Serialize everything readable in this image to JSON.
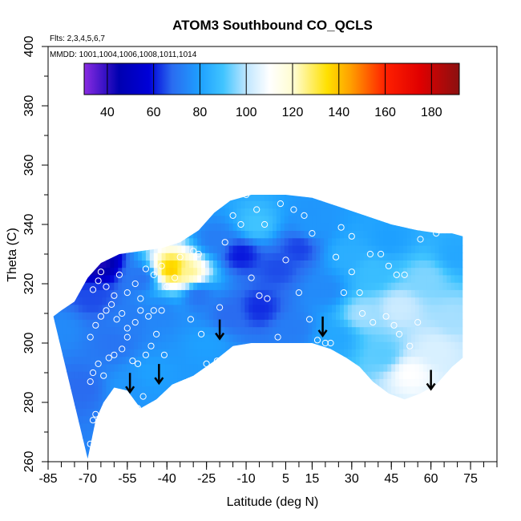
{
  "chart_data": {
    "type": "heatmap",
    "title": "ATOM3 Southbound CO_QCLS",
    "flights_note": "Flts: 2,3,4,5,6,7",
    "dates_note": "MMDD: 1001,1004,1006,1008,1011,1014",
    "xlabel": "Latitude (deg N)",
    "ylabel": "Theta (C)",
    "xlim": [
      -85,
      85
    ],
    "ylim": [
      260,
      400
    ],
    "x_ticks": [
      -85,
      -70,
      -55,
      -40,
      -25,
      -10,
      5,
      15,
      30,
      45,
      60,
      75
    ],
    "x_tick_labels": [
      "-85",
      "-70",
      "-55",
      "-40",
      "-25",
      "-10",
      "5",
      "15",
      "30",
      "45",
      "60",
      "75"
    ],
    "x_minor_step": 5,
    "y_ticks": [
      260,
      280,
      300,
      320,
      340,
      360,
      380,
      400
    ],
    "y_tick_labels": [
      "260",
      "280",
      "300",
      "320",
      "340",
      "360",
      "380",
      "400"
    ],
    "y_minor_step": 10,
    "colorbar": {
      "min": 30,
      "max": 192,
      "ticks": [
        40,
        60,
        80,
        100,
        120,
        140,
        160,
        180
      ],
      "tick_labels": [
        "40",
        "60",
        "80",
        "100",
        "120",
        "140",
        "160",
        "180"
      ],
      "stops": [
        {
          "v": 30,
          "color": "#8a2be2"
        },
        {
          "v": 45,
          "color": "#0000b0"
        },
        {
          "v": 58,
          "color": "#0000d8"
        },
        {
          "v": 68,
          "color": "#2a6cf0"
        },
        {
          "v": 80,
          "color": "#1ea0ff"
        },
        {
          "v": 90,
          "color": "#40c4ff"
        },
        {
          "v": 100,
          "color": "#bfe6ff"
        },
        {
          "v": 110,
          "color": "#ffffff"
        },
        {
          "v": 121,
          "color": "#fffccc"
        },
        {
          "v": 135,
          "color": "#ffe000"
        },
        {
          "v": 145,
          "color": "#ffa000"
        },
        {
          "v": 160,
          "color": "#ff2000"
        },
        {
          "v": 175,
          "color": "#e00000"
        },
        {
          "v": 192,
          "color": "#8b1010"
        }
      ]
    },
    "field": {
      "lower_boundary": [
        [
          -70,
          261
        ],
        [
          -67,
          274
        ],
        [
          -64,
          280
        ],
        [
          -60,
          285
        ],
        [
          -55,
          284
        ],
        [
          -50,
          278
        ],
        [
          -44,
          281
        ],
        [
          -38,
          286
        ],
        [
          -30,
          289
        ],
        [
          -22,
          294
        ],
        [
          -15,
          299
        ],
        [
          -8,
          300
        ],
        [
          5,
          300
        ],
        [
          15,
          300
        ],
        [
          22,
          298
        ],
        [
          28,
          295
        ],
        [
          33,
          292
        ],
        [
          38,
          287
        ],
        [
          44,
          283
        ],
        [
          50,
          281
        ],
        [
          56,
          283
        ],
        [
          62,
          286
        ],
        [
          68,
          292
        ],
        [
          72,
          295
        ]
      ],
      "upper_boundary": [
        [
          -83,
          309
        ],
        [
          -80,
          311
        ],
        [
          -75,
          314
        ],
        [
          -70,
          322
        ],
        [
          -65,
          327
        ],
        [
          -58,
          330
        ],
        [
          -50,
          331
        ],
        [
          -42,
          332
        ],
        [
          -35,
          334
        ],
        [
          -28,
          338
        ],
        [
          -22,
          344
        ],
        [
          -16,
          348
        ],
        [
          -8,
          350
        ],
        [
          5,
          350
        ],
        [
          15,
          349
        ],
        [
          25,
          346
        ],
        [
          35,
          343
        ],
        [
          45,
          340
        ],
        [
          55,
          338
        ],
        [
          63,
          337
        ],
        [
          68,
          337
        ],
        [
          72,
          336
        ]
      ],
      "anchors": [
        {
          "lat": -80,
          "theta": 305,
          "co": 75
        },
        {
          "lat": -72,
          "theta": 285,
          "co": 68
        },
        {
          "lat": -68,
          "theta": 315,
          "co": 65
        },
        {
          "lat": -66,
          "theta": 327,
          "co": 42
        },
        {
          "lat": -60,
          "theta": 300,
          "co": 70
        },
        {
          "lat": -55,
          "theta": 285,
          "co": 78
        },
        {
          "lat": -50,
          "theta": 322,
          "co": 70
        },
        {
          "lat": -46,
          "theta": 290,
          "co": 80
        },
        {
          "lat": -42,
          "theta": 310,
          "co": 74
        },
        {
          "lat": -38,
          "theta": 325,
          "co": 138
        },
        {
          "lat": -32,
          "theta": 324,
          "co": 125
        },
        {
          "lat": -28,
          "theta": 316,
          "co": 70
        },
        {
          "lat": -25,
          "theta": 300,
          "co": 80
        },
        {
          "lat": -22,
          "theta": 335,
          "co": 72
        },
        {
          "lat": -16,
          "theta": 310,
          "co": 68
        },
        {
          "lat": -12,
          "theta": 330,
          "co": 60
        },
        {
          "lat": -6,
          "theta": 340,
          "co": 90
        },
        {
          "lat": -5,
          "theta": 312,
          "co": 62
        },
        {
          "lat": 2,
          "theta": 325,
          "co": 65
        },
        {
          "lat": 8,
          "theta": 305,
          "co": 72
        },
        {
          "lat": 15,
          "theta": 340,
          "co": 78
        },
        {
          "lat": 20,
          "theta": 318,
          "co": 75
        },
        {
          "lat": 24,
          "theta": 302,
          "co": 82
        },
        {
          "lat": 28,
          "theta": 330,
          "co": 84
        },
        {
          "lat": 34,
          "theta": 310,
          "co": 98
        },
        {
          "lat": 38,
          "theta": 324,
          "co": 88
        },
        {
          "lat": 42,
          "theta": 296,
          "co": 92
        },
        {
          "lat": 44,
          "theta": 335,
          "co": 80
        },
        {
          "lat": 48,
          "theta": 312,
          "co": 102
        },
        {
          "lat": 52,
          "theta": 290,
          "co": 110
        },
        {
          "lat": 58,
          "theta": 322,
          "co": 95
        },
        {
          "lat": 62,
          "theta": 298,
          "co": 104
        },
        {
          "lat": 68,
          "theta": 308,
          "co": 98
        },
        {
          "lat": 70,
          "theta": 330,
          "co": 82
        },
        {
          "lat": -55,
          "theta": 308,
          "co": 72
        },
        {
          "lat": 10,
          "theta": 332,
          "co": 64
        }
      ]
    },
    "sample_points": [
      [
        -69,
        266
      ],
      [
        -68,
        274
      ],
      [
        -67,
        276
      ],
      [
        -65,
        275
      ],
      [
        -62,
        275
      ],
      [
        -60,
        282
      ],
      [
        -58,
        279
      ],
      [
        -56,
        281
      ],
      [
        -54,
        276
      ],
      [
        -51,
        278
      ],
      [
        -49,
        282
      ],
      [
        -69,
        287
      ],
      [
        -68,
        290
      ],
      [
        -66,
        293
      ],
      [
        -64,
        289
      ],
      [
        -62,
        295
      ],
      [
        -60,
        296
      ],
      [
        -57,
        298
      ],
      [
        -55,
        302
      ],
      [
        -53,
        294
      ],
      [
        -51,
        293
      ],
      [
        -48,
        296
      ],
      [
        -46,
        299
      ],
      [
        -44,
        303
      ],
      [
        -41,
        296
      ],
      [
        -69,
        302
      ],
      [
        -67,
        306
      ],
      [
        -65,
        309
      ],
      [
        -63,
        311
      ],
      [
        -61,
        313
      ],
      [
        -59,
        308
      ],
      [
        -57,
        310
      ],
      [
        -55,
        305
      ],
      [
        -52,
        307
      ],
      [
        -50,
        311
      ],
      [
        -47,
        309
      ],
      [
        -45,
        311
      ],
      [
        -42,
        311
      ],
      [
        -68,
        318
      ],
      [
        -66,
        321
      ],
      [
        -65,
        324
      ],
      [
        -63,
        319
      ],
      [
        -60,
        316
      ],
      [
        -58,
        323
      ],
      [
        -55,
        317
      ],
      [
        -52,
        320
      ],
      [
        -50,
        315
      ],
      [
        -48,
        325
      ],
      [
        -45,
        323
      ],
      [
        -42,
        326
      ],
      [
        -40,
        319
      ],
      [
        -37,
        322
      ],
      [
        -71,
        327
      ],
      [
        -67,
        329
      ],
      [
        -35,
        329
      ],
      [
        -30,
        331
      ],
      [
        -28,
        330
      ],
      [
        -31,
        308
      ],
      [
        -27,
        303
      ],
      [
        -25,
        293
      ],
      [
        -21,
        294
      ],
      [
        -20,
        312
      ],
      [
        -18,
        334
      ],
      [
        -15,
        343
      ],
      [
        -10,
        350
      ],
      [
        -6,
        345
      ],
      [
        -3,
        340
      ],
      [
        -12,
        340
      ],
      [
        -8,
        322
      ],
      [
        -5,
        316
      ],
      [
        -2,
        315
      ],
      [
        2,
        302
      ],
      [
        3,
        347
      ],
      [
        8,
        345
      ],
      [
        12,
        343
      ],
      [
        15,
        337
      ],
      [
        5,
        328
      ],
      [
        10,
        317
      ],
      [
        14,
        308
      ],
      [
        17,
        301
      ],
      [
        20,
        300
      ],
      [
        22,
        300
      ],
      [
        24,
        329
      ],
      [
        27,
        317
      ],
      [
        30,
        324
      ],
      [
        33,
        317
      ],
      [
        34,
        310
      ],
      [
        38,
        307
      ],
      [
        37,
        330
      ],
      [
        41,
        330
      ],
      [
        44,
        326
      ],
      [
        47,
        323
      ],
      [
        46,
        306
      ],
      [
        43,
        309
      ],
      [
        26,
        339
      ],
      [
        30,
        336
      ],
      [
        50,
        323
      ],
      [
        56,
        335
      ],
      [
        62,
        337
      ],
      [
        48,
        303
      ],
      [
        52,
        299
      ],
      [
        55,
        307
      ]
    ],
    "arrows": [
      {
        "lat": -54,
        "theta": 284
      },
      {
        "lat": -43,
        "theta": 287
      },
      {
        "lat": -20,
        "theta": 302
      },
      {
        "lat": 19,
        "theta": 303
      },
      {
        "lat": 60,
        "theta": 285
      }
    ]
  }
}
